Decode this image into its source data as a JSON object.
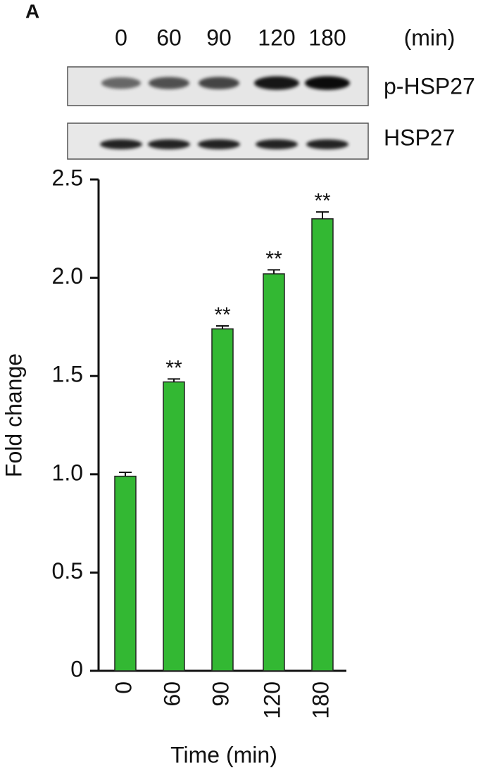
{
  "panel_label": "A",
  "blot": {
    "lanes": [
      "0",
      "60",
      "90",
      "120",
      "180"
    ],
    "unit": "(min)",
    "rows": [
      "p-HSP27",
      "HSP27"
    ]
  },
  "chart_data": {
    "type": "bar",
    "categories": [
      "0",
      "60",
      "90",
      "120",
      "180"
    ],
    "values": [
      0.99,
      1.47,
      1.74,
      2.02,
      2.3
    ],
    "errors": [
      0.02,
      0.015,
      0.015,
      0.02,
      0.035
    ],
    "significance": [
      null,
      "**",
      "**",
      "**",
      "**"
    ],
    "color": "#33b833",
    "ylabel": "Fold change",
    "xlabel": "Time (min)",
    "ylim": [
      0,
      2.5
    ],
    "yticks": [
      0,
      {
        "value": 0.5,
        "label": "0.5"
      },
      {
        "value": 1,
        "label": "1.0"
      },
      {
        "value": 1.5,
        "label": "1.5"
      },
      {
        "value": 2,
        "label": "2.0"
      },
      2.5
    ]
  }
}
